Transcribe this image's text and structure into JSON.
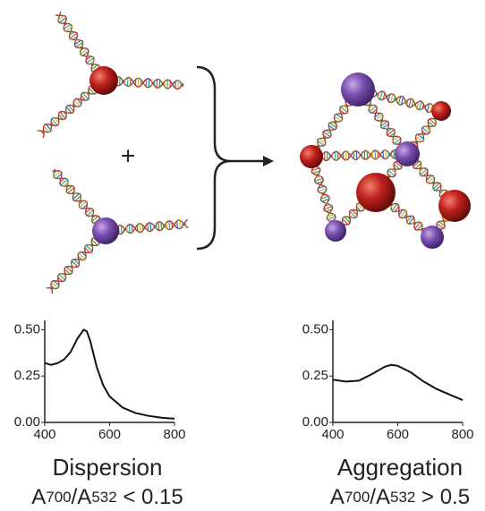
{
  "diagram": {
    "plus": "+"
  },
  "chart_data": [
    {
      "type": "line",
      "title": "Dispersion",
      "subtitle": [
        "A",
        "700",
        "/A",
        "532",
        " < 0.15"
      ],
      "color": "#111111",
      "x": [
        400,
        420,
        440,
        460,
        480,
        500,
        520,
        530,
        540,
        560,
        580,
        600,
        640,
        680,
        720,
        760,
        800
      ],
      "values": [
        0.32,
        0.31,
        0.32,
        0.34,
        0.38,
        0.45,
        0.5,
        0.49,
        0.44,
        0.3,
        0.2,
        0.14,
        0.08,
        0.05,
        0.035,
        0.025,
        0.02
      ],
      "xlim": [
        400,
        800
      ],
      "xticks": [
        400,
        600,
        800
      ],
      "ylim": [
        0,
        0.55
      ],
      "yticks": [
        {
          "value": 0,
          "label": "0.00"
        },
        {
          "value": 0.25,
          "label": "0.25"
        },
        {
          "value": 0.5,
          "label": "0.50"
        }
      ]
    },
    {
      "type": "line",
      "title": "Aggregation",
      "subtitle": [
        "A",
        "700",
        "/A",
        "532",
        " > 0.5"
      ],
      "color": "#111111",
      "x": [
        400,
        440,
        480,
        520,
        560,
        580,
        600,
        640,
        680,
        720,
        760,
        800
      ],
      "values": [
        0.23,
        0.22,
        0.225,
        0.26,
        0.3,
        0.31,
        0.305,
        0.27,
        0.22,
        0.18,
        0.15,
        0.12
      ],
      "xlim": [
        400,
        800
      ],
      "xticks": [
        400,
        600,
        800
      ],
      "ylim": [
        0,
        0.55
      ],
      "yticks": [
        {
          "value": 0,
          "label": "0.00"
        },
        {
          "value": 0.25,
          "label": "0.25"
        },
        {
          "value": 0.5,
          "label": "0.50"
        }
      ]
    }
  ]
}
